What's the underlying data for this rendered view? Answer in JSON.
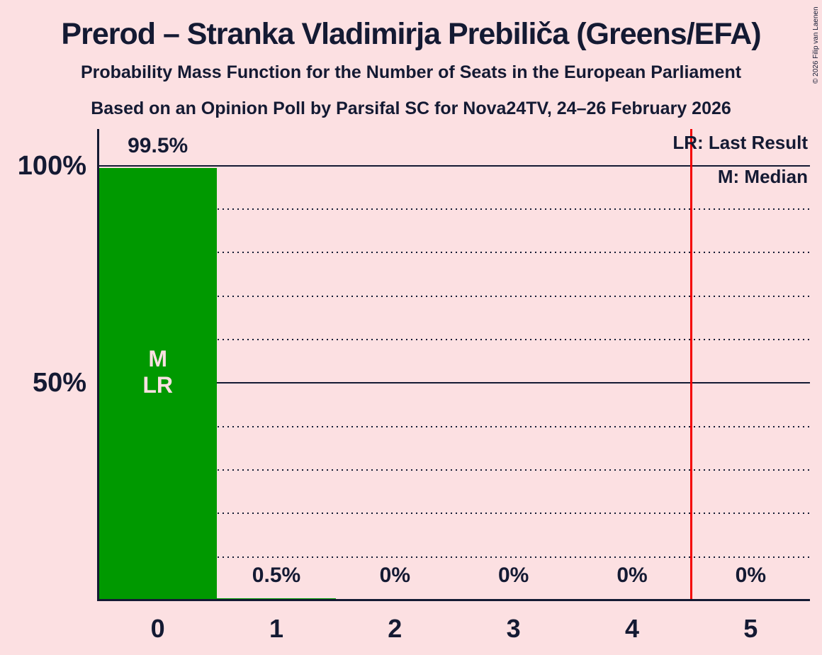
{
  "title": "Prerod – Stranka Vladimirja Prebiliča (Greens/EFA)",
  "subtitle1": "Probability Mass Function for the Number of Seats in the European Parliament",
  "subtitle2": "Based on an Opinion Poll by Parsifal SC for Nova24TV, 24–26 February 2026",
  "copyright": "© 2026 Filip van Laenen",
  "legend": {
    "lr": "LR: Last Result",
    "m": "M: Median"
  },
  "colors": {
    "background": "#FCE0E2",
    "bar_green": "#009900",
    "text_navy": "#141A33",
    "last_result_line_red": "#F40000",
    "on_bar_label_pink": "#FCE0E2"
  },
  "chart_data": {
    "type": "bar",
    "title": "Prerod – Stranka Vladimirja Prebiliča (Greens/EFA)",
    "subtitle": "Probability Mass Function for the Number of Seats in the European Parliament",
    "categories": [
      "0",
      "1",
      "2",
      "3",
      "4",
      "5"
    ],
    "values": [
      99.5,
      0.5,
      0,
      0,
      0,
      0
    ],
    "value_labels": [
      "99.5%",
      "0.5%",
      "0%",
      "0%",
      "0%",
      "0%"
    ],
    "xlabel": "",
    "ylabel": "",
    "ylim": [
      0,
      100
    ],
    "y_ticks": [
      {
        "value": 100,
        "label": "100%"
      },
      {
        "value": 50,
        "label": "50%"
      }
    ],
    "gridlines_pct": [
      10,
      20,
      30,
      40,
      50,
      60,
      70,
      80,
      90,
      100
    ],
    "solid_gridlines_pct": [
      50,
      100
    ],
    "grid": "dotted-horizontal",
    "legend_position": "top-right",
    "median_category": "0",
    "last_result_category": "0",
    "bar_annotations": [
      {
        "category_index": 0,
        "lines": [
          "M",
          "LR"
        ]
      }
    ],
    "last_result_vline_between_categories": [
      4,
      5
    ]
  }
}
